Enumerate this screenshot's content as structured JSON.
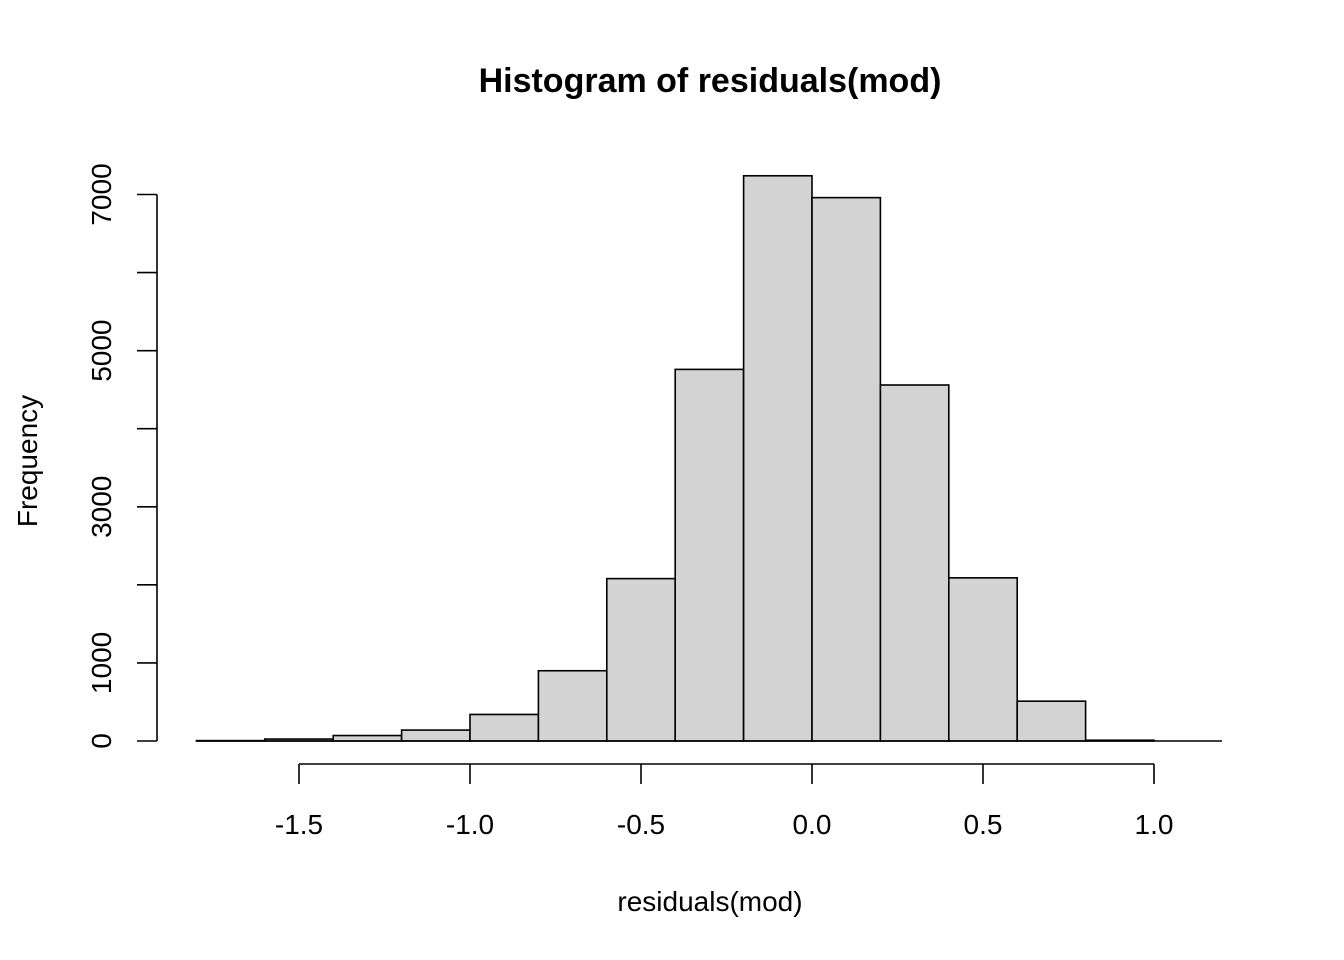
{
  "chart_data": {
    "type": "histogram",
    "title": "Histogram of residuals(mod)",
    "xlabel": "residuals(mod)",
    "ylabel": "Frequency",
    "bin_edges": [
      -1.8,
      -1.6,
      -1.4,
      -1.2,
      -1.0,
      -0.8,
      -0.6,
      -0.4,
      -0.2,
      0.0,
      0.2,
      0.4,
      0.6,
      0.8,
      1.0
    ],
    "values": [
      5,
      25,
      70,
      140,
      340,
      900,
      2080,
      4760,
      7240,
      6960,
      4560,
      2090,
      510,
      10
    ],
    "xlim": [
      -1.8,
      1.2
    ],
    "ylim": [
      0,
      7400
    ],
    "x_ticks": [
      -1.5,
      -1.0,
      -0.5,
      0.0,
      0.5,
      1.0
    ],
    "x_tick_labels": [
      "-1.5",
      "-1.0",
      "-0.5",
      "0.0",
      "0.5",
      "1.0"
    ],
    "y_ticks": [
      0,
      1000,
      2000,
      3000,
      4000,
      5000,
      6000,
      7000
    ],
    "y_tick_labels": [
      "0",
      "1000",
      "3000",
      "5000",
      "7000"
    ],
    "y_labeled_ticks": [
      0,
      1000,
      3000,
      5000,
      7000
    ],
    "bar_color": "#d3d3d3",
    "grid": false
  }
}
